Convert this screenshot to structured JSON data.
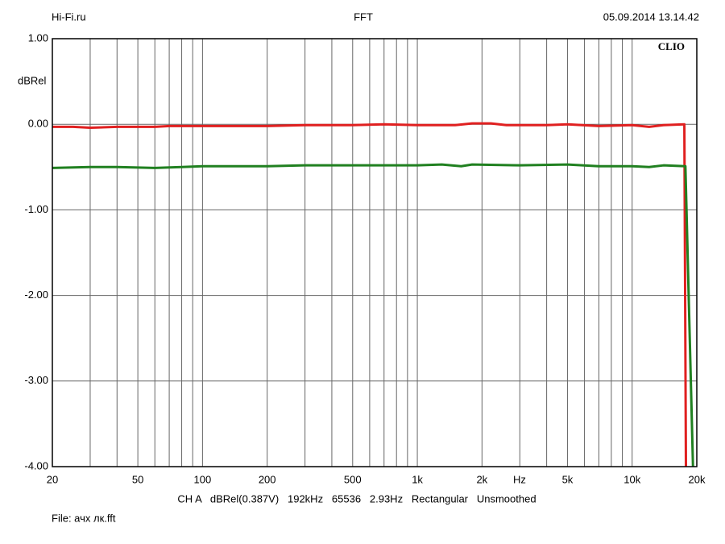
{
  "chart_data": {
    "type": "line",
    "header_left": "Hi-Fi.ru",
    "title": "FFT",
    "header_right": "05.09.2014 13.14.42",
    "ylabel": "dBRel",
    "xunit": "Hz",
    "logo": "CLIO",
    "settings": "CH A   dBRel(0.387V)   192kHz   65536   2.93Hz   Rectangular   Unsmoothed",
    "file": "File: ачх лк.fft",
    "xscale": "log",
    "grid": true,
    "xlim": [
      20,
      20000
    ],
    "xticks": [
      20,
      50,
      100,
      200,
      500,
      {
        "value": 1000,
        "label": "1k"
      },
      {
        "value": 2000,
        "label": "2k"
      },
      {
        "value": 5000,
        "label": "5k"
      },
      {
        "value": 10000,
        "label": "10k"
      },
      {
        "value": 20000,
        "label": "20k"
      }
    ],
    "x_minor_ticks": [
      30,
      40,
      60,
      70,
      80,
      90,
      300,
      400,
      600,
      700,
      800,
      900,
      3000,
      4000,
      6000,
      7000,
      8000,
      9000
    ],
    "ylim": [
      -4,
      1
    ],
    "yticks": [
      {
        "value": 1,
        "label": "1.00"
      },
      {
        "value": 0,
        "label": "0.00"
      },
      {
        "value": -1,
        "label": "-1.00"
      },
      {
        "value": -2,
        "label": "-2.00"
      },
      {
        "value": -3,
        "label": "-3.00"
      },
      {
        "value": -4,
        "label": "-4.00"
      }
    ],
    "series": [
      {
        "color": "#e02020",
        "x": [
          20,
          25,
          30,
          40,
          60,
          70,
          100,
          200,
          300,
          500,
          700,
          1000,
          1500,
          1800,
          2200,
          2600,
          4000,
          5000,
          7000,
          10000,
          12000,
          14000,
          17500,
          17800
        ],
        "values": [
          -0.03,
          -0.03,
          -0.04,
          -0.03,
          -0.03,
          -0.02,
          -0.02,
          -0.02,
          -0.01,
          -0.01,
          0.0,
          -0.01,
          -0.01,
          0.01,
          0.01,
          -0.01,
          -0.01,
          0.0,
          -0.02,
          -0.01,
          -0.03,
          -0.01,
          0.0,
          -4.0
        ]
      },
      {
        "color": "#208020",
        "x": [
          20,
          30,
          40,
          60,
          80,
          100,
          200,
          300,
          500,
          1000,
          1300,
          1600,
          1800,
          3000,
          5000,
          7000,
          10000,
          12000,
          14000,
          17700,
          19200
        ],
        "values": [
          -0.51,
          -0.5,
          -0.5,
          -0.51,
          -0.5,
          -0.49,
          -0.49,
          -0.48,
          -0.48,
          -0.48,
          -0.47,
          -0.49,
          -0.47,
          -0.48,
          -0.47,
          -0.49,
          -0.49,
          -0.5,
          -0.48,
          -0.49,
          -4.0
        ]
      }
    ]
  }
}
